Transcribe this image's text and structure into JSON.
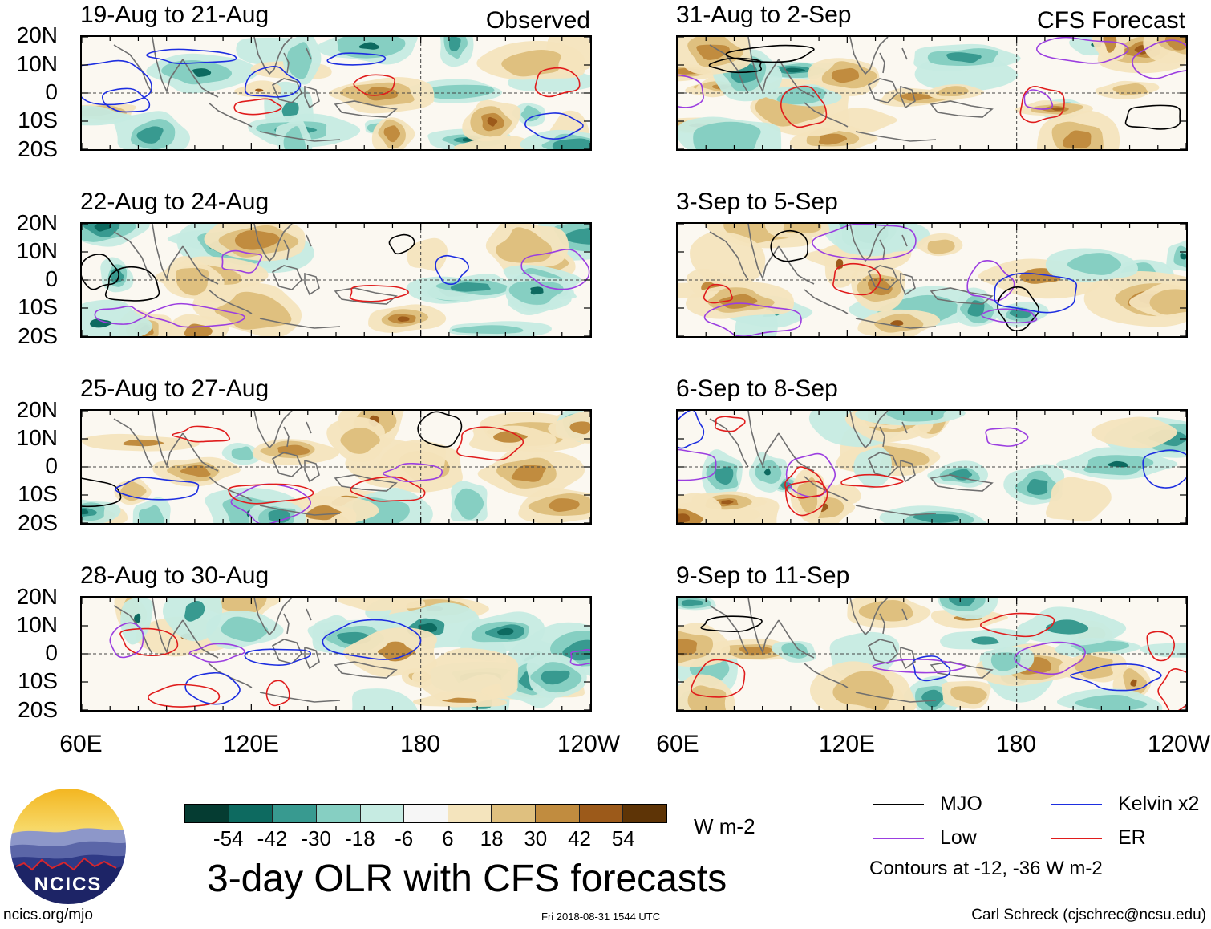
{
  "left_column": {
    "header": "Observed",
    "panels": [
      {
        "title": "19-Aug to 21-Aug"
      },
      {
        "title": "22-Aug to 24-Aug"
      },
      {
        "title": "25-Aug to 27-Aug"
      },
      {
        "title": "28-Aug to 30-Aug"
      }
    ],
    "lon_labels": [
      "60E",
      "120E",
      "180",
      "120W"
    ]
  },
  "right_column": {
    "header": "CFS Forecast",
    "panels": [
      {
        "title": "31-Aug to 2-Sep"
      },
      {
        "title": "3-Sep to 5-Sep"
      },
      {
        "title": "6-Sep to 8-Sep"
      },
      {
        "title": "9-Sep to 11-Sep"
      }
    ],
    "lon_labels": [
      "60E",
      "120E",
      "180",
      "120W"
    ]
  },
  "lat_labels": [
    "20N",
    "10N",
    "0",
    "10S",
    "20S"
  ],
  "colorbar": {
    "colors": [
      "#053c32",
      "#0d6a60",
      "#389a90",
      "#86cfc2",
      "#c6ebe2",
      "#f6f6f6",
      "#f4e4bd",
      "#dfc07f",
      "#c18c3f",
      "#9c5a1a",
      "#5e3406"
    ],
    "labels": [
      "-54",
      "-42",
      "-30",
      "-18",
      "-6",
      "6",
      "18",
      "30",
      "42",
      "54"
    ],
    "units": "W m-2"
  },
  "legend": {
    "items": [
      {
        "label": "MJO",
        "color": "#000000"
      },
      {
        "label": "Kelvin x2",
        "color": "#1d2ee0"
      },
      {
        "label": "Low",
        "color": "#9b3ee0"
      },
      {
        "label": "ER",
        "color": "#e01c1c"
      }
    ],
    "note": "Contours at -12, -36 W m-2"
  },
  "main_title": "3-day OLR with CFS forecasts",
  "logo": {
    "text": "NCICS"
  },
  "footer": {
    "url": "ncics.org/mjo",
    "timestamp": "Fri 2018-08-31 1544 UTC",
    "author": "Carl Schreck (cjschrec@ncsu.edu)"
  }
}
